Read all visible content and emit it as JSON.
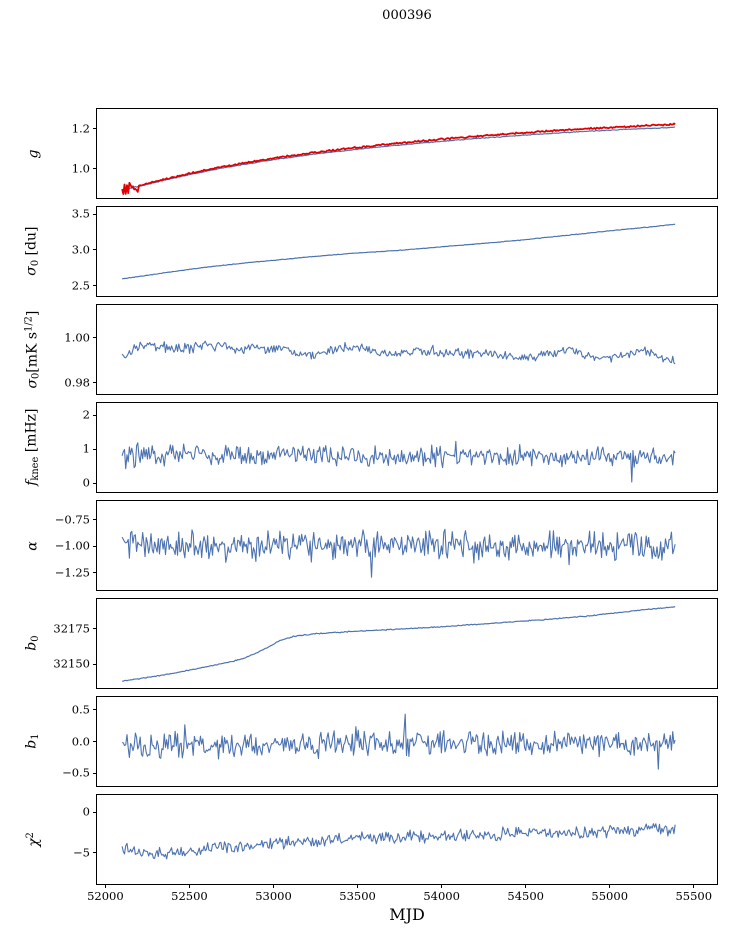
{
  "chart_data": {
    "type": "line",
    "title": "000396",
    "xlabel": "MJD",
    "xlim": [
      51950,
      55650
    ],
    "x_range": [
      52100,
      55400
    ],
    "n_points": 460,
    "grid": false,
    "legend": "none",
    "colors": {
      "line": "#4C72B0",
      "highlight": "#E00000"
    },
    "xticks": [
      {
        "v": 52000,
        "label": "52000"
      },
      {
        "v": 52500,
        "label": "52500"
      },
      {
        "v": 53000,
        "label": "53000"
      },
      {
        "v": 53500,
        "label": "53500"
      },
      {
        "v": 54000,
        "label": "54000"
      },
      {
        "v": 54500,
        "label": "54500"
      },
      {
        "v": 55000,
        "label": "55000"
      },
      {
        "v": 55500,
        "label": "55500"
      }
    ],
    "panels": [
      {
        "id": "g",
        "ylabel_parts": [
          {
            "t": "g",
            "i": 1
          }
        ],
        "ylim": [
          0.845,
          1.298
        ],
        "yticks": [
          {
            "v": 1.0,
            "label": "1.0"
          },
          {
            "v": 1.2,
            "label": "1.2"
          }
        ],
        "series": [
          {
            "name": "g-smooth",
            "color": "#4C72B0",
            "width": 1.2,
            "noise": 0.0015,
            "trend": [
              [
                52100,
                0.885
              ],
              [
                52250,
                0.915
              ],
              [
                52450,
                0.955
              ],
              [
                52700,
                0.998
              ],
              [
                53000,
                1.04
              ],
              [
                53300,
                1.074
              ],
              [
                53600,
                1.102
              ],
              [
                53900,
                1.126
              ],
              [
                54200,
                1.147
              ],
              [
                54500,
                1.165
              ],
              [
                54800,
                1.181
              ],
              [
                55100,
                1.194
              ],
              [
                55400,
                1.205
              ]
            ]
          },
          {
            "name": "g-measured",
            "color": "#E00000",
            "width": 1.8,
            "noise": 0.003,
            "start_noise": {
              "until": 52200,
              "amp": 0.026
            },
            "trend": [
              [
                52100,
                0.885
              ],
              [
                52250,
                0.918
              ],
              [
                52450,
                0.96
              ],
              [
                52700,
                1.004
              ],
              [
                53000,
                1.047
              ],
              [
                53300,
                1.082
              ],
              [
                53600,
                1.111
              ],
              [
                53900,
                1.136
              ],
              [
                54200,
                1.158
              ],
              [
                54500,
                1.177
              ],
              [
                54800,
                1.194
              ],
              [
                55100,
                1.208
              ],
              [
                55400,
                1.22
              ]
            ]
          }
        ]
      },
      {
        "id": "sigma0-du",
        "ylabel_parts": [
          {
            "t": "σ",
            "i": 1
          },
          {
            "t": "0",
            "sub": 1
          },
          {
            "t": " [du]"
          }
        ],
        "ylim": [
          2.33,
          3.6
        ],
        "yticks": [
          {
            "v": 2.5,
            "label": "2.5"
          },
          {
            "v": 3.0,
            "label": "3.0"
          },
          {
            "v": 3.5,
            "label": "3.5"
          }
        ],
        "series": [
          {
            "name": "sigma0-du",
            "color": "#4C72B0",
            "width": 1.2,
            "noise": 0.003,
            "trend": [
              [
                52100,
                2.575
              ],
              [
                52250,
                2.625
              ],
              [
                52450,
                2.695
              ],
              [
                52650,
                2.755
              ],
              [
                52850,
                2.805
              ],
              [
                53050,
                2.85
              ],
              [
                53250,
                2.895
              ],
              [
                53450,
                2.935
              ],
              [
                53650,
                2.965
              ],
              [
                53850,
                3.0
              ],
              [
                54050,
                3.04
              ],
              [
                54250,
                3.08
              ],
              [
                54450,
                3.12
              ],
              [
                54650,
                3.17
              ],
              [
                54850,
                3.22
              ],
              [
                55050,
                3.27
              ],
              [
                55250,
                3.315
              ],
              [
                55400,
                3.355
              ]
            ]
          }
        ]
      },
      {
        "id": "sigma0-mk",
        "ylabel_parts": [
          {
            "t": "σ",
            "i": 1
          },
          {
            "t": "0",
            "sub": 1
          },
          {
            "t": "[mK s"
          },
          {
            "t": "1/2",
            "sup": 1
          },
          {
            "t": "]"
          }
        ],
        "ylim": [
          0.974,
          1.0145
        ],
        "yticks": [
          {
            "v": 0.98,
            "label": "0.98"
          },
          {
            "v": 1.0,
            "label": "1.00"
          }
        ],
        "series": [
          {
            "name": "sigma0-mk",
            "color": "#4C72B0",
            "width": 1.1,
            "noise": 0.0016,
            "wiggle": {
              "amp": 0.0012,
              "period": 420
            },
            "trend": [
              [
                52100,
                0.99
              ],
              [
                52200,
                0.9945
              ],
              [
                52350,
                0.996
              ],
              [
                52600,
                0.9945
              ],
              [
                52850,
                0.996
              ],
              [
                53100,
                0.9925
              ],
              [
                53350,
                0.994
              ],
              [
                53600,
                0.9935
              ],
              [
                53850,
                0.9925
              ],
              [
                54100,
                0.9935
              ],
              [
                54350,
                0.991
              ],
              [
                54600,
                0.992
              ],
              [
                54850,
                0.9925
              ],
              [
                55100,
                0.9905
              ],
              [
                55250,
                0.9935
              ],
              [
                55400,
                0.9895
              ]
            ]
          }
        ]
      },
      {
        "id": "fknee",
        "ylabel_parts": [
          {
            "t": "f",
            "i": 1
          },
          {
            "t": "knee",
            "sub": 1
          },
          {
            "t": " [mHz]"
          }
        ],
        "ylim": [
          -0.32,
          2.36
        ],
        "yticks": [
          {
            "v": 0,
            "label": "0"
          },
          {
            "v": 1,
            "label": "1"
          },
          {
            "v": 2,
            "label": "2"
          }
        ],
        "series": [
          {
            "name": "fknee",
            "color": "#4C72B0",
            "width": 1.1,
            "noise": 0.21,
            "spikes": {
              "prob": 0.04,
              "amp": 0.55
            },
            "start_noise": {
              "until": 52200,
              "amp": 0.33
            },
            "trend": [
              [
                52100,
                0.85
              ],
              [
                52600,
                0.8
              ],
              [
                53500,
                0.78
              ],
              [
                54500,
                0.75
              ],
              [
                55400,
                0.74
              ]
            ]
          }
        ]
      },
      {
        "id": "alpha",
        "ylabel_parts": [
          {
            "t": "α",
            "i": 1
          }
        ],
        "ylim": [
          -1.43,
          -0.575
        ],
        "yticks": [
          {
            "v": -1.25,
            "label": "−1.25"
          },
          {
            "v": -1.0,
            "label": "−1.00"
          },
          {
            "v": -0.75,
            "label": "−0.75"
          }
        ],
        "series": [
          {
            "name": "alpha",
            "color": "#4C72B0",
            "width": 1.1,
            "noise": 0.095,
            "spikes": {
              "prob": 0.05,
              "amp": 0.22
            },
            "trend": [
              [
                52100,
                -1.0
              ],
              [
                55400,
                -1.0
              ]
            ]
          }
        ]
      },
      {
        "id": "b0",
        "ylabel_parts": [
          {
            "t": "b",
            "i": 1
          },
          {
            "t": "0",
            "sub": 1
          }
        ],
        "ylim": [
          32132,
          32196
        ],
        "yticks": [
          {
            "v": 32150,
            "label": "32150"
          },
          {
            "v": 32175,
            "label": "32175"
          }
        ],
        "series": [
          {
            "name": "b0",
            "color": "#4C72B0",
            "width": 1.2,
            "noise": 0.25,
            "trend": [
              [
                52100,
                32137
              ],
              [
                52250,
                32139.5
              ],
              [
                52400,
                32142.5
              ],
              [
                52550,
                32146
              ],
              [
                52700,
                32149.5
              ],
              [
                52820,
                32153
              ],
              [
                52900,
                32157
              ],
              [
                52980,
                32162
              ],
              [
                53040,
                32166
              ],
              [
                53120,
                32169
              ],
              [
                53250,
                32171
              ],
              [
                53450,
                32172.5
              ],
              [
                53700,
                32174
              ],
              [
                54000,
                32176
              ],
              [
                54300,
                32178.5
              ],
              [
                54600,
                32181
              ],
              [
                54900,
                32184
              ],
              [
                55150,
                32187.5
              ],
              [
                55400,
                32190.5
              ]
            ]
          }
        ]
      },
      {
        "id": "b1",
        "ylabel_parts": [
          {
            "t": "b",
            "i": 1
          },
          {
            "t": "1",
            "sub": 1
          }
        ],
        "ylim": [
          -0.73,
          0.7
        ],
        "yticks": [
          {
            "v": -0.5,
            "label": "−0.5"
          },
          {
            "v": 0.0,
            "label": "0.0"
          },
          {
            "v": 0.5,
            "label": "0.5"
          }
        ],
        "series": [
          {
            "name": "b1",
            "color": "#4C72B0",
            "width": 1.1,
            "noise": 0.135,
            "spikes": {
              "prob": 0.05,
              "amp": 0.3
            },
            "trend": [
              [
                52100,
                -0.08
              ],
              [
                52700,
                -0.07
              ],
              [
                53500,
                -0.04
              ],
              [
                54500,
                -0.05
              ],
              [
                55400,
                -0.04
              ]
            ]
          }
        ]
      },
      {
        "id": "chi2",
        "ylabel_parts": [
          {
            "t": "χ",
            "i": 1
          },
          {
            "t": "2",
            "sup": 1
          }
        ],
        "ylim": [
          -9.1,
          2.1
        ],
        "yticks": [
          {
            "v": -5,
            "label": "−5"
          },
          {
            "v": 0,
            "label": "0"
          }
        ],
        "series": [
          {
            "name": "chi2",
            "color": "#4C72B0",
            "width": 1.1,
            "noise": 0.55,
            "spikes": {
              "prob": 0.03,
              "amp": 1.1
            },
            "trend": [
              [
                52100,
                -4.7
              ],
              [
                52250,
                -5.4
              ],
              [
                52450,
                -5.1
              ],
              [
                52650,
                -4.6
              ],
              [
                52900,
                -4.15
              ],
              [
                53200,
                -3.7
              ],
              [
                53600,
                -3.3
              ],
              [
                54000,
                -3.05
              ],
              [
                54400,
                -2.8
              ],
              [
                54800,
                -2.55
              ],
              [
                55100,
                -2.35
              ],
              [
                55400,
                -2.2
              ]
            ]
          }
        ]
      }
    ]
  }
}
